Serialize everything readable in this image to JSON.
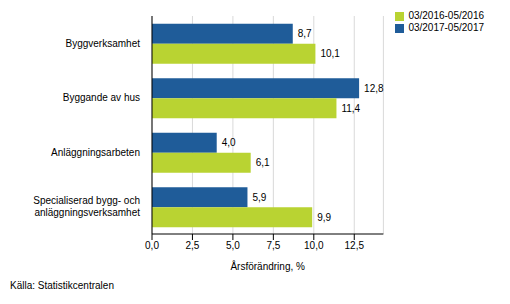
{
  "chart_data": {
    "type": "bar",
    "orientation": "horizontal",
    "categories": [
      "Byggverksamhet",
      "Byggande av hus",
      "Anläggningsarbeten",
      "Specialiserad bygg- och anläggningsverksamhet"
    ],
    "series": [
      {
        "name": "03/2017-05/2017",
        "color": "#1f5c99",
        "values": [
          8.7,
          12.8,
          4.0,
          5.9
        ],
        "value_labels": [
          "8,7",
          "12,8",
          "4,0",
          "5,9"
        ]
      },
      {
        "name": "03/2016-05/2016",
        "color": "#b9d332",
        "values": [
          10.1,
          11.4,
          6.1,
          9.9
        ],
        "value_labels": [
          "10,1",
          "11,4",
          "6,1",
          "9,9"
        ]
      }
    ],
    "x_label": "Årsförändring, %",
    "source": "Källa: Statistikcentralen",
    "xlim": [
      0,
      14.3
    ],
    "xticks": [
      {
        "value": 0,
        "label": "0,0"
      },
      {
        "value": 2.5,
        "label": "2,5"
      },
      {
        "value": 5,
        "label": "5,0"
      },
      {
        "value": 7.5,
        "label": "7,5"
      },
      {
        "value": 10,
        "label": "10,0"
      },
      {
        "value": 12.5,
        "label": "12,5"
      }
    ],
    "grid": true,
    "legend": "top-right",
    "data_labels": true
  }
}
